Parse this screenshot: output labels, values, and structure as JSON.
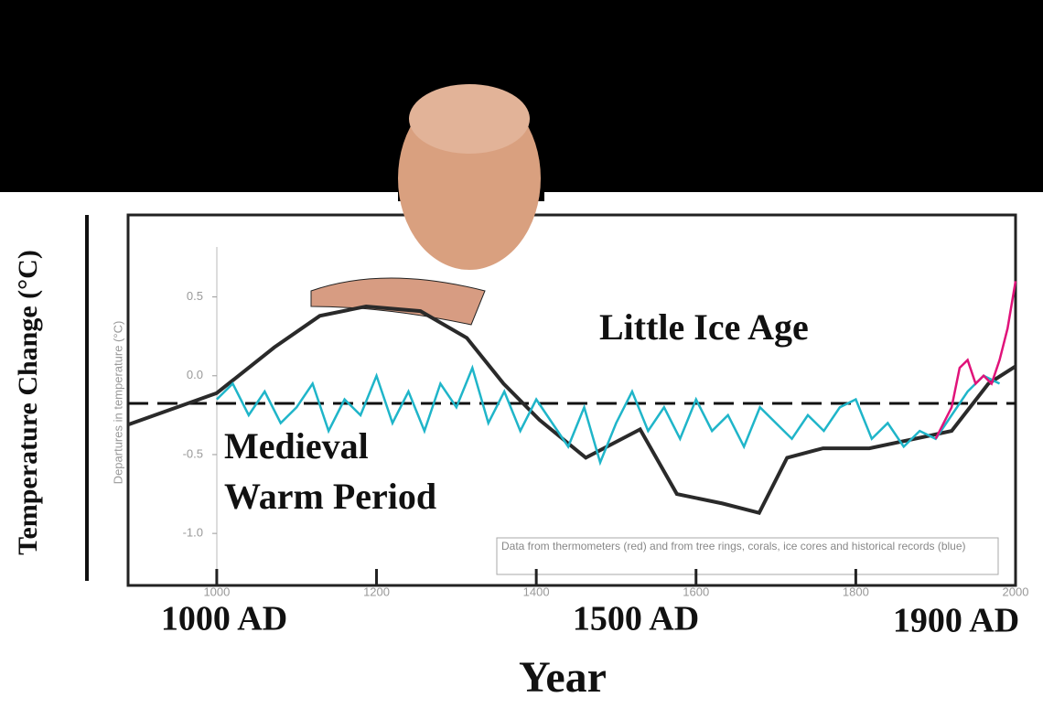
{
  "chart_data": {
    "type": "line",
    "y_label": "Temperature Change (°C)",
    "x_label": "Year",
    "era_labels": [
      "1000 AD",
      "1500 AD",
      "1900 AD"
    ],
    "annotations": [
      "Little Ice Age",
      "Medieval",
      "Warm Period"
    ],
    "note": "Data from thermometers (red) and from tree rings, corals, ice cores and historical records (blue)",
    "inner_y_label": "Departures in temperature (°C)",
    "xlim": [
      889,
      2000
    ],
    "ylim": [
      -1.33,
      1.02
    ],
    "xticks": [
      1000,
      1200,
      1400,
      1600,
      1800,
      2000
    ],
    "yticks": [
      {
        "value": -1,
        "label": "-1.0"
      },
      {
        "value": -0.5,
        "label": "-0.5"
      },
      {
        "value": 0,
        "label": "0.0"
      },
      {
        "value": 0.5,
        "label": "0.5"
      }
    ],
    "series": [
      {
        "color": "#2a2a2a",
        "x": [
          889,
          1000,
          1072,
          1129,
          1187,
          1255,
          1313,
          1359,
          1404,
          1462,
          1530,
          1576,
          1633,
          1679,
          1714,
          1759,
          1817,
          1874,
          1920,
          1966,
          2000
        ],
        "values": [
          -0.31,
          -0.11,
          0.18,
          0.38,
          0.44,
          0.41,
          0.24,
          -0.05,
          -0.28,
          -0.52,
          -0.34,
          -0.75,
          -0.81,
          -0.87,
          -0.52,
          -0.46,
          -0.46,
          -0.4,
          -0.35,
          -0.05,
          0.06
        ]
      },
      {
        "color": "#1fb5c9",
        "x": [
          1000,
          1020,
          1040,
          1060,
          1080,
          1100,
          1120,
          1140,
          1160,
          1180,
          1200,
          1220,
          1240,
          1260,
          1280,
          1300,
          1320,
          1340,
          1360,
          1380,
          1400,
          1420,
          1440,
          1460,
          1480,
          1500,
          1520,
          1540,
          1560,
          1580,
          1600,
          1620,
          1640,
          1660,
          1680,
          1700,
          1720,
          1740,
          1760,
          1780,
          1800,
          1820,
          1840,
          1860,
          1880,
          1900,
          1920,
          1940,
          1960,
          1980
        ],
        "values": [
          -0.15,
          -0.05,
          -0.25,
          -0.1,
          -0.3,
          -0.2,
          -0.05,
          -0.35,
          -0.15,
          -0.25,
          0.0,
          -0.3,
          -0.1,
          -0.35,
          -0.05,
          -0.2,
          0.05,
          -0.3,
          -0.1,
          -0.35,
          -0.15,
          -0.3,
          -0.45,
          -0.2,
          -0.55,
          -0.3,
          -0.1,
          -0.35,
          -0.2,
          -0.4,
          -0.15,
          -0.35,
          -0.25,
          -0.45,
          -0.2,
          -0.3,
          -0.4,
          -0.25,
          -0.35,
          -0.2,
          -0.15,
          -0.4,
          -0.3,
          -0.45,
          -0.35,
          -0.4,
          -0.25,
          -0.1,
          0.0,
          -0.05
        ]
      },
      {
        "color": "#e0137a",
        "x": [
          1900,
          1910,
          1920,
          1930,
          1940,
          1950,
          1960,
          1970,
          1980,
          1990,
          2000
        ],
        "values": [
          -0.4,
          -0.3,
          -0.2,
          0.05,
          0.1,
          -0.05,
          0.0,
          -0.05,
          0.1,
          0.3,
          0.6
        ]
      }
    ]
  }
}
